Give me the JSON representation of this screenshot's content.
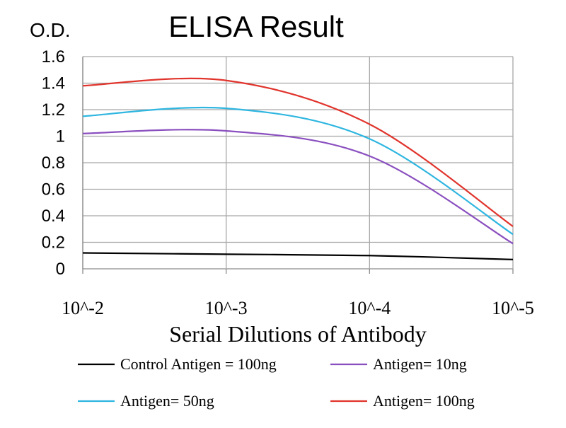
{
  "chart_data": {
    "type": "line",
    "title": "ELISA Result",
    "ylabel": "O.D.",
    "xlabel": "Serial Dilutions of Antibody",
    "categories": [
      "10^-2",
      "10^-3",
      "10^-4",
      "10^-5"
    ],
    "ylim": [
      0,
      1.6
    ],
    "yticks": [
      "0",
      "0.2",
      "0.4",
      "0.6",
      "0.8",
      "1",
      "1.2",
      "1.4",
      "1.6"
    ],
    "grid": true,
    "legend_position": "bottom",
    "series": [
      {
        "name": "Control Antigen = 100ng",
        "color": "#000000",
        "values": [
          0.12,
          0.11,
          0.1,
          0.07
        ]
      },
      {
        "name": "Antigen= 10ng",
        "color": "#8a4fbf",
        "values": [
          1.02,
          1.04,
          0.85,
          0.19
        ]
      },
      {
        "name": "Antigen= 50ng",
        "color": "#2fb6e0",
        "values": [
          1.15,
          1.21,
          0.98,
          0.26
        ]
      },
      {
        "name": "Antigen= 100ng",
        "color": "#e0342c",
        "values": [
          1.38,
          1.42,
          1.09,
          0.32
        ]
      }
    ]
  }
}
